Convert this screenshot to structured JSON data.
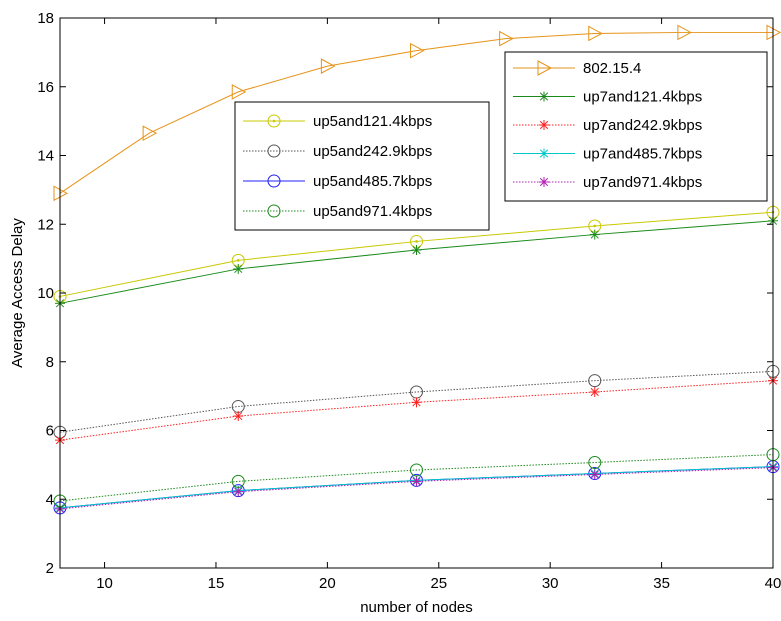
{
  "chart_data": {
    "type": "line",
    "title": "",
    "xlabel": "number of nodes",
    "ylabel": "Average Access Delay",
    "xlim": [
      8,
      40
    ],
    "ylim": [
      2,
      18
    ],
    "xticks": [
      10,
      15,
      20,
      25,
      30,
      35,
      40
    ],
    "yticks": [
      2,
      4,
      6,
      8,
      10,
      12,
      14,
      16,
      18
    ],
    "grid": false,
    "series": [
      {
        "name": "802.15.4",
        "color": "#e69319",
        "marker": "triangle-right",
        "dash": "solid",
        "x": [
          8,
          12,
          16,
          20,
          24,
          28,
          32,
          36,
          40
        ],
        "y": [
          12.9,
          14.65,
          15.85,
          16.6,
          17.05,
          17.4,
          17.55,
          17.58,
          17.58
        ]
      },
      {
        "name": "up5and121.4kbps",
        "color": "#c8c800",
        "marker": "circle-dot",
        "dash": "solid",
        "x": [
          8,
          16,
          24,
          32,
          40
        ],
        "y": [
          9.9,
          10.95,
          11.5,
          11.95,
          12.35
        ]
      },
      {
        "name": "up7and121.4kbps",
        "color": "#1a8a1a",
        "marker": "star",
        "dash": "solid",
        "x": [
          8,
          16,
          24,
          32,
          40
        ],
        "y": [
          9.7,
          10.7,
          11.25,
          11.7,
          12.1
        ]
      },
      {
        "name": "up5and242.9kbps",
        "color": "#555555",
        "marker": "circle",
        "dash": "dotted",
        "x": [
          8,
          16,
          24,
          32,
          40
        ],
        "y": [
          5.95,
          6.7,
          7.12,
          7.45,
          7.72
        ]
      },
      {
        "name": "up7and242.9kbps",
        "color": "#ff2020",
        "marker": "star",
        "dash": "dotted",
        "x": [
          8,
          16,
          24,
          32,
          40
        ],
        "y": [
          5.72,
          6.42,
          6.82,
          7.12,
          7.45
        ]
      },
      {
        "name": "up5and485.7kbps",
        "color": "#2020ff",
        "marker": "circle",
        "dash": "solid",
        "x": [
          8,
          16,
          24,
          32,
          40
        ],
        "y": [
          3.75,
          4.25,
          4.55,
          4.75,
          4.95
        ]
      },
      {
        "name": "up7and485.7kbps",
        "color": "#00c8c8",
        "marker": "star",
        "dash": "solid",
        "x": [
          8,
          16,
          24,
          32,
          40
        ],
        "y": [
          3.75,
          4.25,
          4.55,
          4.75,
          4.95
        ]
      },
      {
        "name": "up7and971.4kbps",
        "color": "#b020b0",
        "marker": "star",
        "dash": "dotted",
        "x": [
          8,
          16,
          24,
          32,
          40
        ],
        "y": [
          3.72,
          4.22,
          4.52,
          4.72,
          4.92
        ]
      },
      {
        "name": "up5and971.4kbps",
        "color": "#1a8a1a",
        "marker": "circle",
        "dash": "dotted",
        "x": [
          8,
          16,
          24,
          32,
          40
        ],
        "y": [
          3.95,
          4.52,
          4.85,
          5.07,
          5.3
        ]
      }
    ],
    "legends": [
      {
        "placement": "center-left-top",
        "items": [
          "up5and121.4kbps",
          "up5and242.9kbps",
          "up5and485.7kbps",
          "up5and971.4kbps"
        ]
      },
      {
        "placement": "top-right",
        "items": [
          "802.15.4",
          "up7and121.4kbps",
          "up7and242.9kbps",
          "up7and485.7kbps",
          "up7and971.4kbps"
        ]
      }
    ]
  }
}
